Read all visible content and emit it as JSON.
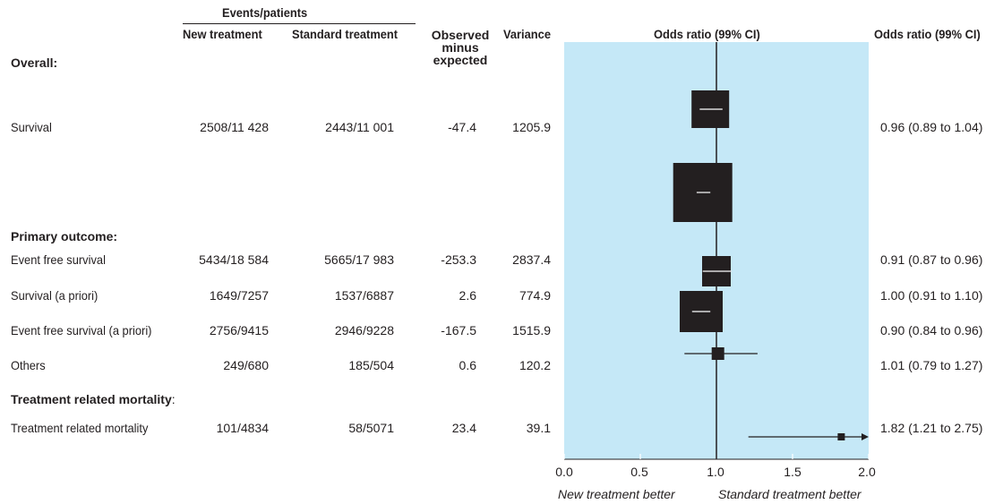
{
  "headers": {
    "events_patients": "Events/patients",
    "new_treatment": "New treatment",
    "standard_treatment": "Standard treatment",
    "observed_minus_expected": [
      "Observed",
      "minus",
      "expected"
    ],
    "variance": "Variance",
    "or_plot": "Odds ratio (99% CI)",
    "or_text": "Odds ratio (99% CI)"
  },
  "sections": {
    "overall": "Overall:",
    "primary": "Primary outcome:",
    "treatment_bold": "Treatment related mortality",
    "treatment_colon": ":"
  },
  "rows": [
    {
      "label": "Survival",
      "new": "2508/11 428",
      "standard": "2443/11 001",
      "ome": "-47.4",
      "variance": "1205.9",
      "ci": "0.96 (0.89 to 1.04)"
    },
    {
      "label": "Event free survival",
      "new": "5434/18 584",
      "standard": "5665/17 983",
      "ome": "-253.3",
      "variance": "2837.4",
      "ci": "0.91 (0.87 to 0.96)"
    },
    {
      "label": "Survival (a priori)",
      "new": "1649/7257",
      "standard": "1537/6887",
      "ome": "2.6",
      "variance": "774.9",
      "ci": "1.00 (0.91 to 1.10)"
    },
    {
      "label": "Event free survival (a priori)",
      "new": "2756/9415",
      "standard": "2946/9228",
      "ome": "-167.5",
      "variance": "1515.9",
      "ci": "0.90 (0.84 to 0.96)"
    },
    {
      "label": "Others",
      "new": "249/680",
      "standard": "185/504",
      "ome": "0.6",
      "variance": "120.2",
      "ci": "1.01 (0.79 to 1.27)"
    },
    {
      "label": "Treatment related mortality",
      "new": "101/4834",
      "standard": "58/5071",
      "ome": "23.4",
      "variance": "39.1",
      "ci": "1.82 (1.21 to 2.75)"
    }
  ],
  "axis": {
    "ticks": [
      "0.0",
      "0.5",
      "1.0",
      "1.5",
      "2.0"
    ],
    "left_label": "New treatment better",
    "right_label": "Standard treatment better"
  },
  "colors": {
    "panel": "#c5e8f7",
    "ink": "#231f20"
  },
  "chart_data": {
    "type": "forest",
    "xlim": [
      0,
      2.0
    ],
    "reference_line": 1.0,
    "x_ticks": [
      0.0,
      0.5,
      1.0,
      1.5,
      2.0
    ],
    "points": [
      {
        "label": "Survival",
        "or": 0.96,
        "low": 0.89,
        "high": 1.04
      },
      {
        "label": "Event free survival",
        "or": 0.91,
        "low": 0.87,
        "high": 0.96
      },
      {
        "label": "Survival (a priori)",
        "or": 1.0,
        "low": 0.91,
        "high": 1.1
      },
      {
        "label": "Event free survival (a priori)",
        "or": 0.9,
        "low": 0.84,
        "high": 0.96
      },
      {
        "label": "Others",
        "or": 1.01,
        "low": 0.79,
        "high": 1.27
      },
      {
        "label": "Treatment related mortality",
        "or": 1.82,
        "low": 1.21,
        "high": 2.75
      }
    ]
  }
}
